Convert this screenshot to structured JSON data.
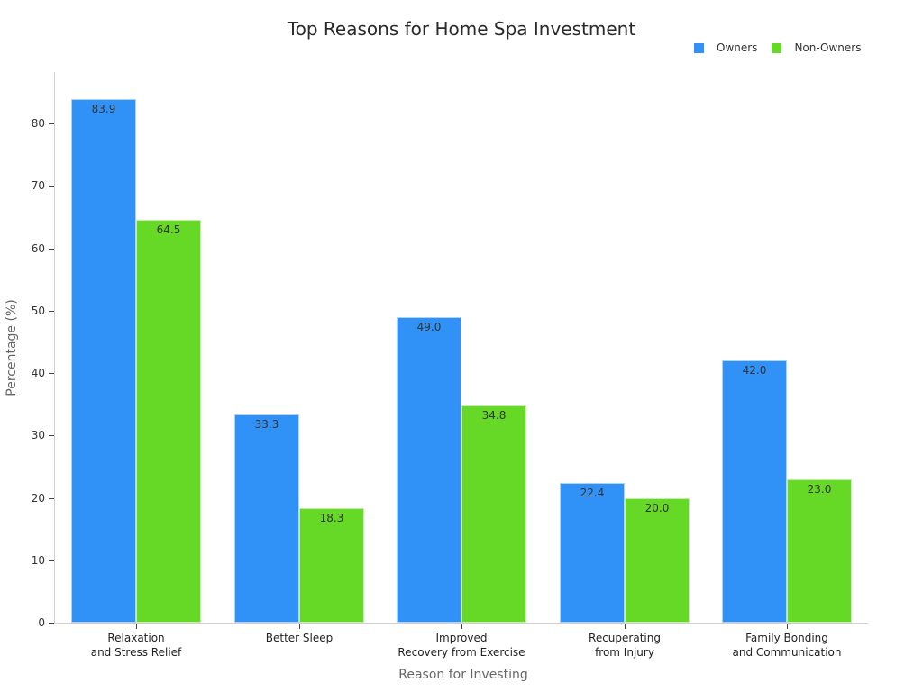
{
  "chart_data": {
    "type": "bar",
    "title": "Top Reasons for Home Spa Investment",
    "xlabel": "Reason for Investing",
    "ylabel": "Percentage (%)",
    "categories": [
      "Relaxation\nand Stress Relief",
      "Better Sleep",
      "Improved\nRecovery from Exercise",
      "Recuperating\nfrom Injury",
      "Family Bonding\nand Communication"
    ],
    "series": [
      {
        "name": "Owners",
        "color": "#3091f7",
        "values": [
          83.9,
          33.3,
          49.0,
          22.4,
          42.0
        ],
        "labels": [
          "83.9",
          "33.3",
          "49.0",
          "22.4",
          "42.0"
        ]
      },
      {
        "name": "Non-Owners",
        "color": "#66d927",
        "values": [
          64.5,
          18.3,
          34.8,
          20.0,
          23.0
        ],
        "labels": [
          "64.5",
          "18.3",
          "34.8",
          "20.0",
          "23.0"
        ]
      }
    ],
    "yticks": [
      "0",
      "10",
      "20",
      "30",
      "40",
      "50",
      "60",
      "70",
      "80"
    ],
    "ylim": [
      0,
      88
    ],
    "grid": false,
    "legend_position": "top-right"
  }
}
